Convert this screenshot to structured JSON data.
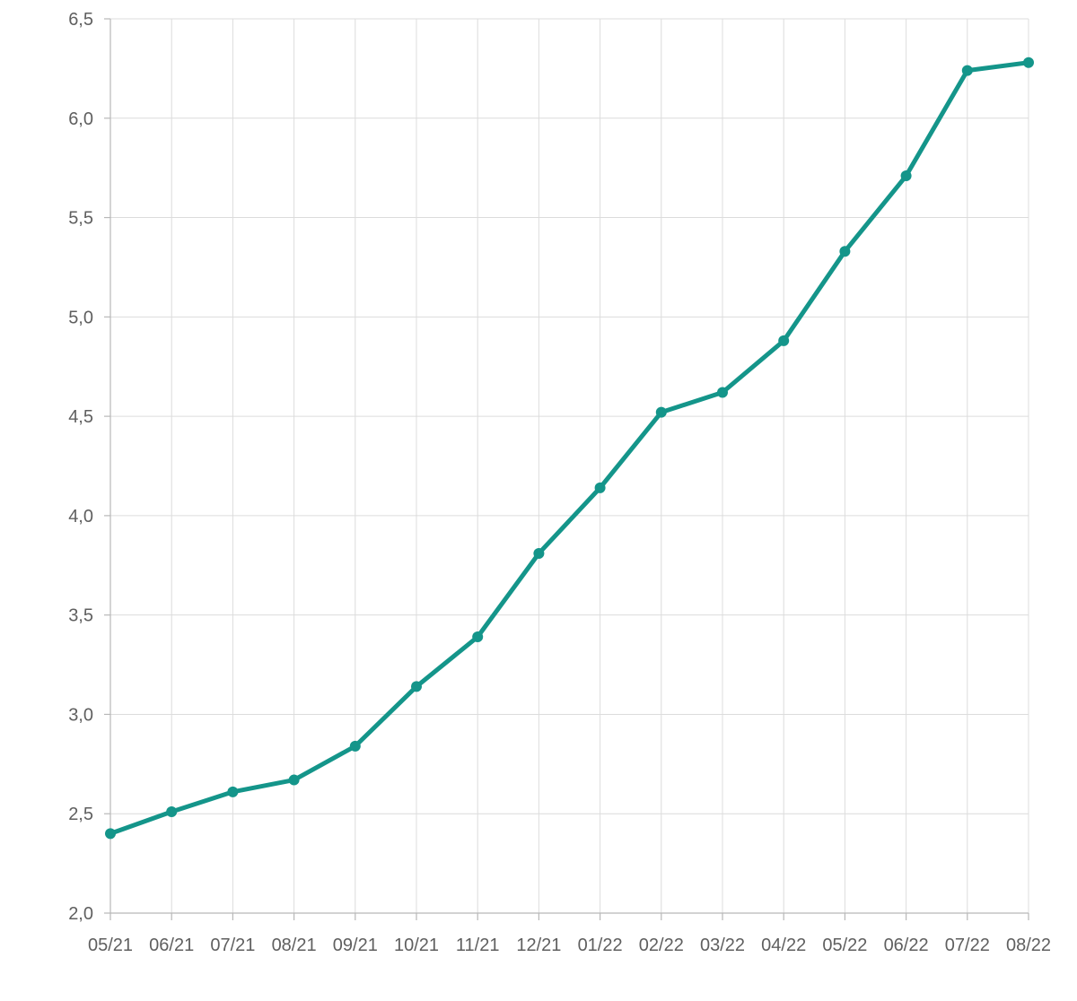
{
  "chart_data": {
    "type": "line",
    "title": "",
    "xlabel": "",
    "ylabel": "",
    "categories": [
      "05/21",
      "06/21",
      "07/21",
      "08/21",
      "09/21",
      "10/21",
      "11/21",
      "12/21",
      "01/22",
      "02/22",
      "03/22",
      "04/22",
      "05/22",
      "06/22",
      "07/22",
      "08/22"
    ],
    "series": [
      {
        "values": [
          2.4,
          2.51,
          2.61,
          2.67,
          2.84,
          3.14,
          3.39,
          3.81,
          4.14,
          4.52,
          4.62,
          4.88,
          5.33,
          5.71,
          6.24,
          6.28
        ]
      }
    ],
    "ylim": [
      2.0,
      6.5
    ],
    "y_ticks": [
      "2,0",
      "2,5",
      "3,0",
      "3,5",
      "4,0",
      "4,5",
      "5,0",
      "5,5",
      "6,0",
      "6,5"
    ],
    "grid": true,
    "legend": "none",
    "colors": {
      "series": "#14958a",
      "grid": "#dcdcdc",
      "axis": "#b8b8b8",
      "text": "#5f5f5f"
    }
  }
}
